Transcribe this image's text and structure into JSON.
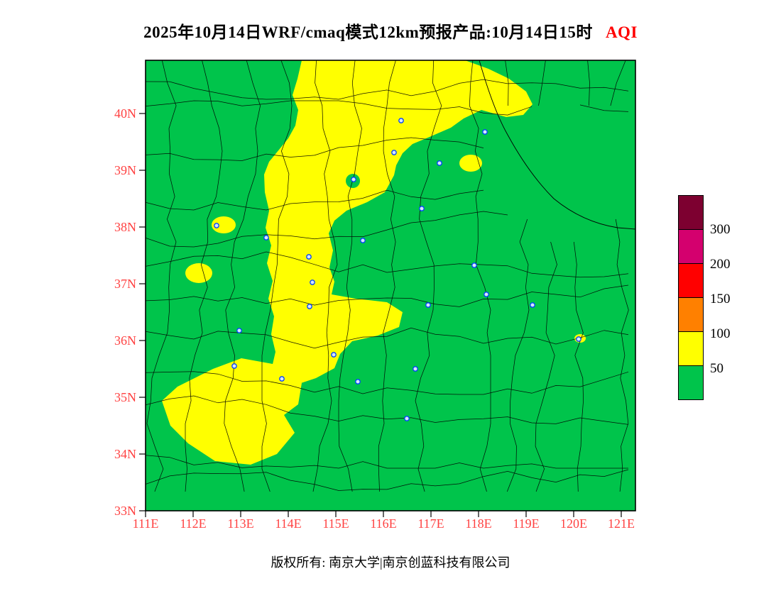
{
  "title": {
    "text": "2025年10月14日WRF/cmaq模式12km预报产品:10月14日15时",
    "unit": "AQI"
  },
  "axes": {
    "lat_ticks": [
      "40N",
      "39N",
      "38N",
      "37N",
      "36N",
      "35N",
      "34N",
      "33N"
    ],
    "lon_ticks": [
      "111E",
      "112E",
      "113E",
      "114E",
      "115E",
      "116E",
      "117E",
      "118E",
      "119E",
      "120E",
      "121E"
    ]
  },
  "legend": {
    "thresholds": [
      "300",
      "200",
      "150",
      "100",
      "50"
    ]
  },
  "colors": {
    "map_green": "#00C44B",
    "yellow": "#FFFF00",
    "marker_blue": "#0041FF",
    "axis_label_red": "#FF4242",
    "title_highlight_red": "#FF0000",
    "legend": [
      "#7D0030",
      "#D4006E",
      "#FF0000",
      "#FF8000",
      "#FFFF00",
      "#00C44B"
    ]
  },
  "footer": {
    "text": "版权所有: 南京大学|南京创蓝科技有限公司"
  },
  "chart_data": {
    "type": "heatmap",
    "subtype": "filled-contour-forecast-map",
    "title": "2025年10月14日WRF/cmaq模式12km预报产品:10月14日15时 AQI",
    "variable": "AQI",
    "model": "WRF/cmaq 12km",
    "valid_time": "10月14日15时",
    "lon_range": [
      111,
      121.3
    ],
    "lat_range": [
      33,
      40.9
    ],
    "legend_levels": [
      50,
      100,
      150,
      200,
      300
    ],
    "legend_colors_low_to_high": [
      "#00C44B",
      "#FFFF00",
      "#FF8000",
      "#FF0000",
      "#D4006E",
      "#7D0030"
    ],
    "value_classes": [
      {
        "range": "0-50",
        "color": "#00C44B",
        "coverage": "most of domain (background)"
      },
      {
        "range": "50-100",
        "color": "#FFFF00",
        "coverage": "diagonal band and patches"
      }
    ],
    "yellow_regions_approx": [
      {
        "name": "main-band",
        "desc": "band from ~40.9N between 114.3E-117.8E extending SSW along 114-115.5E down to ~35.4N, with an eastward bulge to ~116.4E near 36.3-36.7N"
      },
      {
        "name": "southwest-blob",
        "desc": "large area ~33.9N-35.6N, 111.3E-114.2E"
      },
      {
        "name": "patch-38N-112.5E",
        "desc": "small patch near 38N, 112.5E"
      },
      {
        "name": "patch-37.1N-112E",
        "desc": "small patch near 37.1N, 112E"
      },
      {
        "name": "patch-39.2N-117.8E",
        "desc": "small patch near 39.2N, 117.8E"
      },
      {
        "name": "patch-36.1N-120.1E",
        "desc": "tiny coastal patch near 36.1N, 120.1E"
      }
    ],
    "grid": "county administrative boundaries drawn as thin black lines; blue circle city markers"
  }
}
